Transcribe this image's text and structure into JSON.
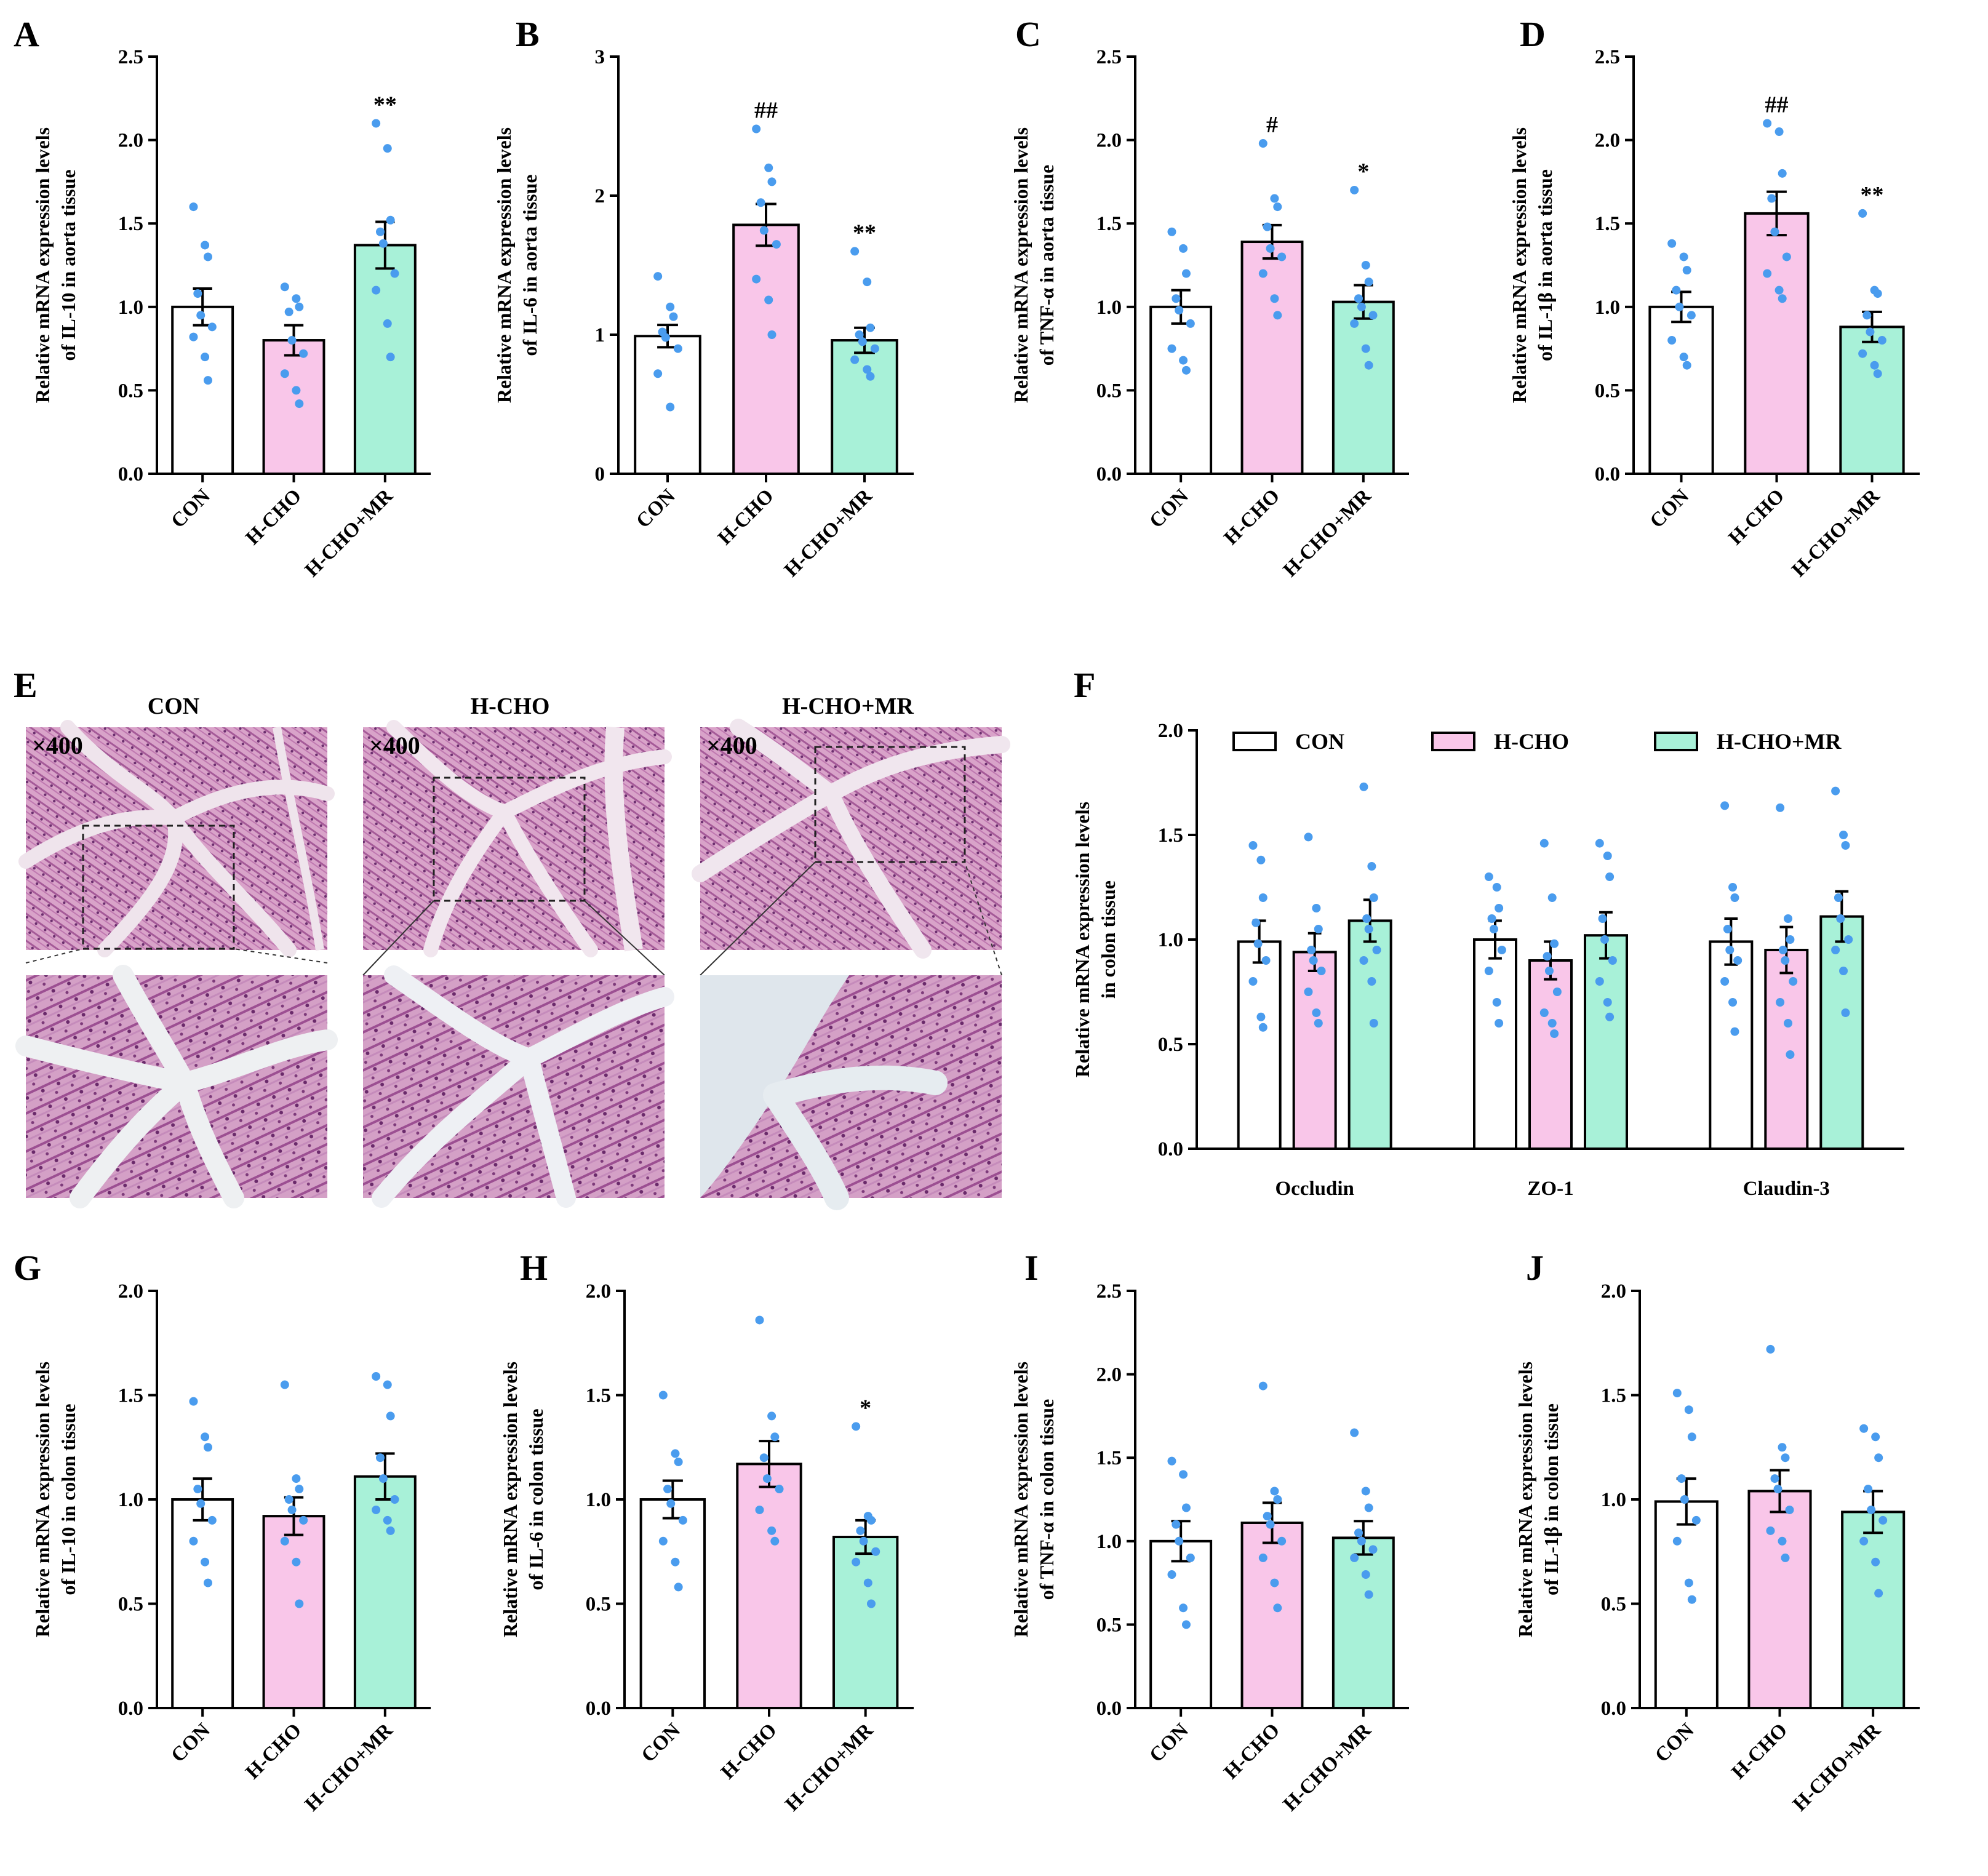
{
  "colors": {
    "CON": "#ffffff",
    "H-CHO": "#f9c6e9",
    "H-CHO+MR": "#a8f1d8",
    "point": "#4a9cee",
    "axis": "#000000"
  },
  "histology": {
    "label": "E",
    "magnification": "×400",
    "titles": [
      "CON",
      "H-CHO",
      "H-CHO+MR"
    ]
  },
  "chart_data": [
    {
      "id": "A",
      "type": "bar",
      "ylabel_lines": [
        "Relative mRNA expression levels",
        "of IL-10 in aorta tissue"
      ],
      "categories": [
        "CON",
        "H-CHO",
        "H-CHO+MR"
      ],
      "ylim": [
        0,
        2.5
      ],
      "yticks": [
        "0.0",
        "0.5",
        "1.0",
        "1.5",
        "2.0",
        "2.5"
      ],
      "values": [
        1.0,
        0.8,
        1.37
      ],
      "sem": [
        0.11,
        0.09,
        0.14
      ],
      "points": [
        [
          1.6,
          1.37,
          1.3,
          1.08,
          0.95,
          0.88,
          0.82,
          0.7,
          0.56
        ],
        [
          1.12,
          1.05,
          1.0,
          0.97,
          0.8,
          0.72,
          0.6,
          0.5,
          0.42
        ],
        [
          2.1,
          1.95,
          1.52,
          1.45,
          1.38,
          1.2,
          1.1,
          0.9,
          0.7
        ]
      ],
      "significance": [
        "",
        "",
        "**"
      ]
    },
    {
      "id": "B",
      "type": "bar",
      "ylabel_lines": [
        "Relative mRNA expression levels",
        "of IL-6 in aorta tissue"
      ],
      "categories": [
        "CON",
        "H-CHO",
        "H-CHO+MR"
      ],
      "ylim": [
        0,
        3
      ],
      "yticks": [
        "0",
        "1",
        "2",
        "3"
      ],
      "values": [
        0.99,
        1.79,
        0.96
      ],
      "sem": [
        0.08,
        0.15,
        0.09
      ],
      "points": [
        [
          1.42,
          1.2,
          1.13,
          1.02,
          0.98,
          0.9,
          0.72,
          0.48
        ],
        [
          2.48,
          2.2,
          2.1,
          1.95,
          1.75,
          1.65,
          1.4,
          1.25,
          1.0
        ],
        [
          1.6,
          1.38,
          1.05,
          1.0,
          0.95,
          0.9,
          0.82,
          0.75,
          0.7
        ]
      ],
      "significance": [
        "",
        "##",
        "**"
      ]
    },
    {
      "id": "C",
      "type": "bar",
      "ylabel_lines": [
        "Relative mRNA expression levels",
        "of TNF-α in aorta tissue"
      ],
      "categories": [
        "CON",
        "H-CHO",
        "H-CHO+MR"
      ],
      "ylim": [
        0,
        2.5
      ],
      "yticks": [
        "0.0",
        "0.5",
        "1.0",
        "1.5",
        "2.0",
        "2.5"
      ],
      "values": [
        1.0,
        1.39,
        1.03
      ],
      "sem": [
        0.1,
        0.1,
        0.1
      ],
      "points": [
        [
          1.45,
          1.35,
          1.2,
          1.05,
          0.98,
          0.9,
          0.75,
          0.68,
          0.62
        ],
        [
          1.98,
          1.65,
          1.6,
          1.48,
          1.35,
          1.3,
          1.2,
          1.05,
          0.95
        ],
        [
          1.7,
          1.25,
          1.15,
          1.05,
          1.0,
          0.95,
          0.9,
          0.75,
          0.65
        ]
      ],
      "significance": [
        "",
        "#",
        "*"
      ]
    },
    {
      "id": "D",
      "type": "bar",
      "ylabel_lines": [
        "Relative mRNA expression levels",
        "of IL-1β in aorta tissue"
      ],
      "categories": [
        "CON",
        "H-CHO",
        "H-CHO+MR"
      ],
      "ylim": [
        0,
        2.5
      ],
      "yticks": [
        "0.0",
        "0.5",
        "1.0",
        "1.5",
        "2.0",
        "2.5"
      ],
      "values": [
        1.0,
        1.56,
        0.88
      ],
      "sem": [
        0.09,
        0.13,
        0.09
      ],
      "points": [
        [
          1.38,
          1.3,
          1.22,
          1.1,
          1.0,
          0.95,
          0.8,
          0.7,
          0.65
        ],
        [
          2.1,
          2.05,
          1.8,
          1.65,
          1.45,
          1.3,
          1.2,
          1.1,
          1.05
        ],
        [
          1.56,
          1.1,
          1.08,
          0.95,
          0.85,
          0.8,
          0.72,
          0.65,
          0.6
        ]
      ],
      "significance": [
        "",
        "##",
        "**"
      ]
    },
    {
      "id": "F",
      "type": "bar",
      "ylabel_lines": [
        "Relative mRNA expression levels",
        "in colon tissue"
      ],
      "categories": [
        "Occludin",
        "ZO-1",
        "Claudin-3"
      ],
      "legend": [
        "CON",
        "H-CHO",
        "H-CHO+MR"
      ],
      "ylim": [
        0,
        2.0
      ],
      "yticks": [
        "0.0",
        "0.5",
        "1.0",
        "1.5",
        "2.0"
      ],
      "series": [
        {
          "name": "CON",
          "values": [
            0.99,
            1.0,
            0.99
          ],
          "sem": [
            0.1,
            0.09,
            0.11
          ],
          "points": [
            [
              1.45,
              1.38,
              1.2,
              1.08,
              0.98,
              0.9,
              0.8,
              0.63,
              0.58
            ],
            [
              1.3,
              1.25,
              1.15,
              1.1,
              1.05,
              0.95,
              0.85,
              0.7,
              0.6
            ],
            [
              1.64,
              1.25,
              1.2,
              1.05,
              0.95,
              0.9,
              0.8,
              0.7,
              0.56
            ]
          ]
        },
        {
          "name": "H-CHO",
          "values": [
            0.94,
            0.9,
            0.95
          ],
          "sem": [
            0.09,
            0.09,
            0.11
          ],
          "points": [
            [
              1.49,
              1.15,
              1.05,
              0.95,
              0.9,
              0.85,
              0.75,
              0.65,
              0.6
            ],
            [
              1.46,
              1.2,
              0.98,
              0.92,
              0.85,
              0.75,
              0.65,
              0.6,
              0.55
            ],
            [
              1.63,
              1.1,
              1.0,
              0.95,
              0.9,
              0.8,
              0.7,
              0.6,
              0.45
            ]
          ]
        },
        {
          "name": "H-CHO+MR",
          "values": [
            1.09,
            1.02,
            1.11
          ],
          "sem": [
            0.1,
            0.11,
            0.12
          ],
          "points": [
            [
              1.73,
              1.35,
              1.2,
              1.1,
              1.05,
              0.95,
              0.9,
              0.8,
              0.6
            ],
            [
              1.46,
              1.4,
              1.3,
              1.1,
              1.0,
              0.9,
              0.8,
              0.7,
              0.63
            ],
            [
              1.71,
              1.5,
              1.45,
              1.2,
              1.1,
              1.0,
              0.95,
              0.85,
              0.65
            ]
          ]
        }
      ]
    },
    {
      "id": "G",
      "type": "bar",
      "ylabel_lines": [
        "Relative mRNA expression levels",
        "of IL-10 in colon tissue"
      ],
      "categories": [
        "CON",
        "H-CHO",
        "H-CHO+MR"
      ],
      "ylim": [
        0,
        2.0
      ],
      "yticks": [
        "0.0",
        "0.5",
        "1.0",
        "1.5",
        "2.0"
      ],
      "values": [
        1.0,
        0.92,
        1.11
      ],
      "sem": [
        0.1,
        0.09,
        0.11
      ],
      "points": [
        [
          1.47,
          1.3,
          1.25,
          1.05,
          0.98,
          0.9,
          0.8,
          0.7,
          0.6
        ],
        [
          1.55,
          1.1,
          1.05,
          1.0,
          0.95,
          0.9,
          0.8,
          0.7,
          0.5
        ],
        [
          1.59,
          1.55,
          1.4,
          1.2,
          1.1,
          1.0,
          0.95,
          0.9,
          0.85
        ]
      ],
      "significance": [
        "",
        "",
        ""
      ]
    },
    {
      "id": "H",
      "type": "bar",
      "ylabel_lines": [
        "Relative mRNA expression levels",
        "of IL-6 in colon tissue"
      ],
      "categories": [
        "CON",
        "H-CHO",
        "H-CHO+MR"
      ],
      "ylim": [
        0,
        2.0
      ],
      "yticks": [
        "0.0",
        "0.5",
        "1.0",
        "1.5",
        "2.0"
      ],
      "values": [
        1.0,
        1.17,
        0.82
      ],
      "sem": [
        0.09,
        0.11,
        0.08
      ],
      "points": [
        [
          1.5,
          1.22,
          1.18,
          1.05,
          0.98,
          0.9,
          0.8,
          0.7,
          0.58
        ],
        [
          1.86,
          1.4,
          1.3,
          1.2,
          1.1,
          1.05,
          0.95,
          0.85,
          0.8
        ],
        [
          1.35,
          0.92,
          0.9,
          0.85,
          0.8,
          0.75,
          0.7,
          0.6,
          0.5
        ]
      ],
      "significance": [
        "",
        "",
        "*"
      ]
    },
    {
      "id": "I",
      "type": "bar",
      "ylabel_lines": [
        "Relative mRNA expression levels",
        "of TNF-α in colon tissue"
      ],
      "categories": [
        "CON",
        "H-CHO",
        "H-CHO+MR"
      ],
      "ylim": [
        0,
        2.5
      ],
      "yticks": [
        "0.0",
        "0.5",
        "1.0",
        "1.5",
        "2.0",
        "2.5"
      ],
      "values": [
        1.0,
        1.11,
        1.02
      ],
      "sem": [
        0.12,
        0.12,
        0.1
      ],
      "points": [
        [
          1.48,
          1.4,
          1.2,
          1.1,
          1.0,
          0.9,
          0.8,
          0.6,
          0.5
        ],
        [
          1.93,
          1.3,
          1.25,
          1.15,
          1.1,
          1.0,
          0.9,
          0.75,
          0.6
        ],
        [
          1.65,
          1.3,
          1.2,
          1.05,
          1.0,
          0.95,
          0.9,
          0.8,
          0.68
        ]
      ],
      "significance": [
        "",
        "",
        ""
      ]
    },
    {
      "id": "J",
      "type": "bar",
      "ylabel_lines": [
        "Relative mRNA expression levels",
        "of IL-1β in colon tissue"
      ],
      "categories": [
        "CON",
        "H-CHO",
        "H-CHO+MR"
      ],
      "ylim": [
        0,
        2.0
      ],
      "yticks": [
        "0.0",
        "0.5",
        "1.0",
        "1.5",
        "2.0"
      ],
      "values": [
        0.99,
        1.04,
        0.94
      ],
      "sem": [
        0.11,
        0.1,
        0.1
      ],
      "points": [
        [
          1.51,
          1.43,
          1.3,
          1.1,
          1.0,
          0.9,
          0.8,
          0.6,
          0.52
        ],
        [
          1.72,
          1.25,
          1.2,
          1.1,
          1.05,
          0.95,
          0.85,
          0.8,
          0.72
        ],
        [
          1.34,
          1.3,
          1.2,
          1.05,
          0.95,
          0.9,
          0.8,
          0.7,
          0.55
        ]
      ],
      "significance": [
        "",
        "",
        ""
      ]
    }
  ]
}
